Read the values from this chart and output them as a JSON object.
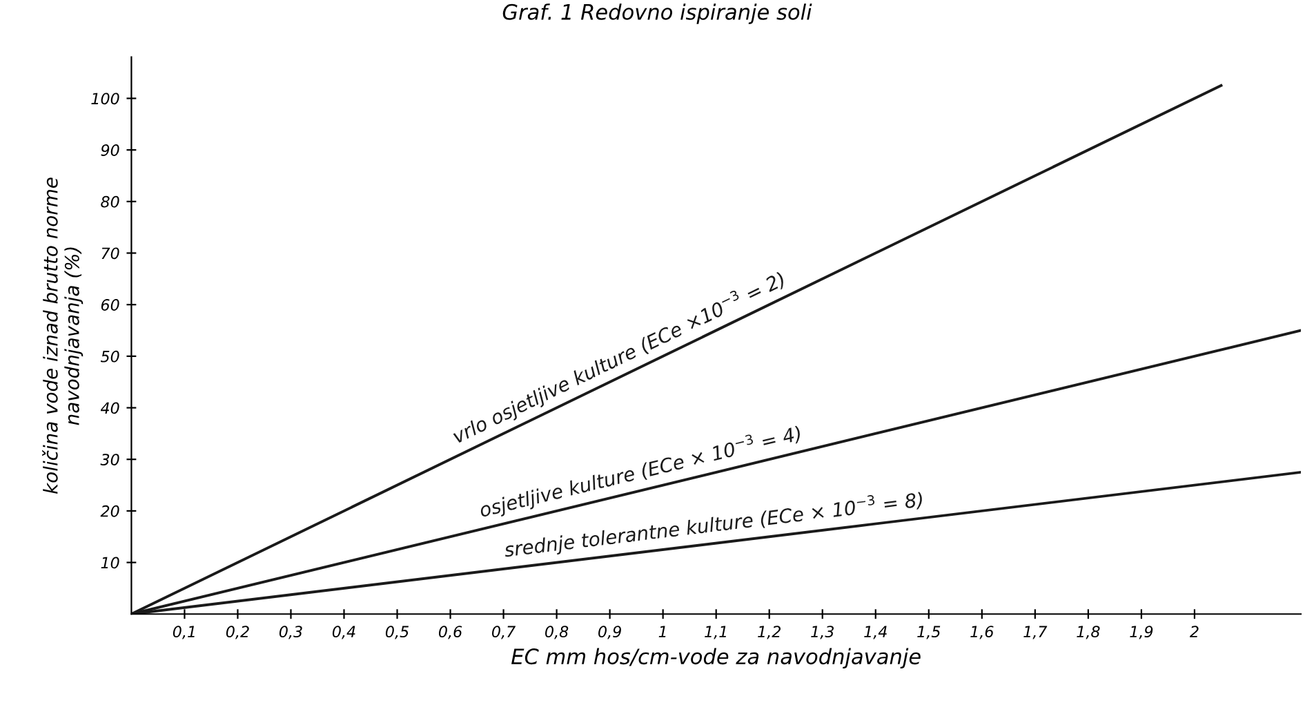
{
  "chart_data": {
    "type": "line",
    "title": "Graf. 1 Redovno ispiranje soli",
    "xlabel": "EC mm hos/cm-vode za navodnjavanje",
    "ylabel": "količina vode iznad brutto norme\nnavodnjavanja (%)",
    "series": [
      {
        "name": "vrlo osjetljive kulture (ECe ×10$^{−3}$ = 2)",
        "color": "#1a1a1a",
        "x": [
          0,
          2.05
        ],
        "values": [
          0,
          102.5
        ]
      },
      {
        "name": "osjetljive kulture (ECe × 10$^{−3}$ = 4)",
        "color": "#1a1a1a",
        "x": [
          0,
          2.2
        ],
        "values": [
          0,
          55
        ]
      },
      {
        "name": "srednje tolerantne kulture (ECe × 10$^{−3}$ = 8)",
        "color": "#1a1a1a",
        "x": [
          0,
          2.2
        ],
        "values": [
          0,
          27.5
        ]
      }
    ],
    "xlim": [
      0,
      2.2
    ],
    "ylim": [
      0,
      108
    ],
    "xticks": [
      {
        "value": 0.1,
        "label": "0,1"
      },
      {
        "value": 0.2,
        "label": "0,2"
      },
      {
        "value": 0.3,
        "label": "0,3"
      },
      {
        "value": 0.4,
        "label": "0,4"
      },
      {
        "value": 0.5,
        "label": "0,5"
      },
      {
        "value": 0.6,
        "label": "0,6"
      },
      {
        "value": 0.7,
        "label": "0,7"
      },
      {
        "value": 0.8,
        "label": "0,8"
      },
      {
        "value": 0.9,
        "label": "0,9"
      },
      1,
      {
        "value": 1.1,
        "label": "1,1"
      },
      {
        "value": 1.2,
        "label": "1,2"
      },
      {
        "value": 1.3,
        "label": "1,3"
      },
      {
        "value": 1.4,
        "label": "1,4"
      },
      {
        "value": 1.5,
        "label": "1,5"
      },
      {
        "value": 1.6,
        "label": "1,6"
      },
      {
        "value": 1.7,
        "label": "1,7"
      },
      {
        "value": 1.8,
        "label": "1,8"
      },
      {
        "value": 1.9,
        "label": "1,9"
      },
      2
    ],
    "yticks": [
      10,
      20,
      30,
      40,
      50,
      60,
      70,
      80,
      90,
      100
    ],
    "grid": false,
    "legend": false,
    "marker": "none",
    "line_style": "solid"
  }
}
